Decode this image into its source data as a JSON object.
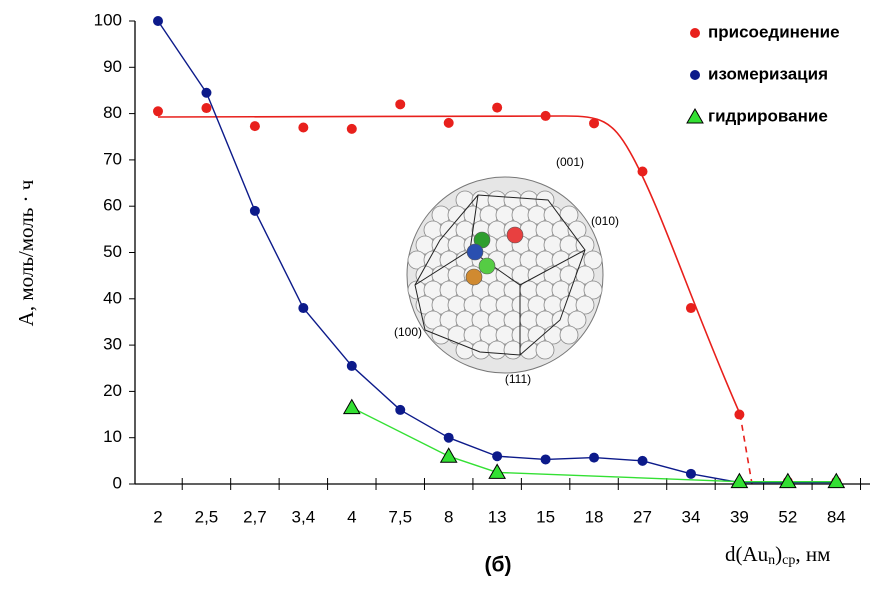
{
  "chart_data": {
    "type": "line",
    "categories": [
      "2",
      "2,5",
      "2,7",
      "3,4",
      "4",
      "7,5",
      "8",
      "13",
      "15",
      "18",
      "27",
      "34",
      "39",
      "52",
      "84"
    ],
    "series": [
      {
        "name": "присоединение",
        "color": "#e8201c",
        "marker": "circle",
        "values": [
          80.5,
          81.2,
          77.3,
          77,
          76.7,
          82,
          78,
          81.3,
          79.5,
          77.9,
          67.5,
          38,
          15,
          0.5,
          0.5
        ]
      },
      {
        "name": "изомеризация",
        "color": "#0c1a8a",
        "marker": "circle",
        "values": [
          100,
          84.5,
          59,
          38,
          25.5,
          16,
          10,
          6,
          5.3,
          5.7,
          5,
          2.2,
          0.3,
          0.3,
          0.3
        ]
      },
      {
        "name": "гидрирование",
        "color": "#33e033",
        "marker": "triangle",
        "values": [
          null,
          null,
          null,
          null,
          16.5,
          null,
          6,
          2.5,
          null,
          null,
          null,
          null,
          0.5,
          0.5,
          0.5
        ]
      }
    ],
    "ylim": [
      0,
      100
    ],
    "yticks": [
      0,
      10,
      20,
      30,
      40,
      50,
      60,
      70,
      80,
      90,
      100
    ],
    "y_label": "А, моль/моль · ч",
    "x_label": [
      "d(Au",
      "n",
      ")",
      "ср",
      ", нм"
    ],
    "caption": "(б)",
    "inset_labels": [
      "(001)",
      "(010)",
      "(100)",
      "(111)"
    ]
  }
}
